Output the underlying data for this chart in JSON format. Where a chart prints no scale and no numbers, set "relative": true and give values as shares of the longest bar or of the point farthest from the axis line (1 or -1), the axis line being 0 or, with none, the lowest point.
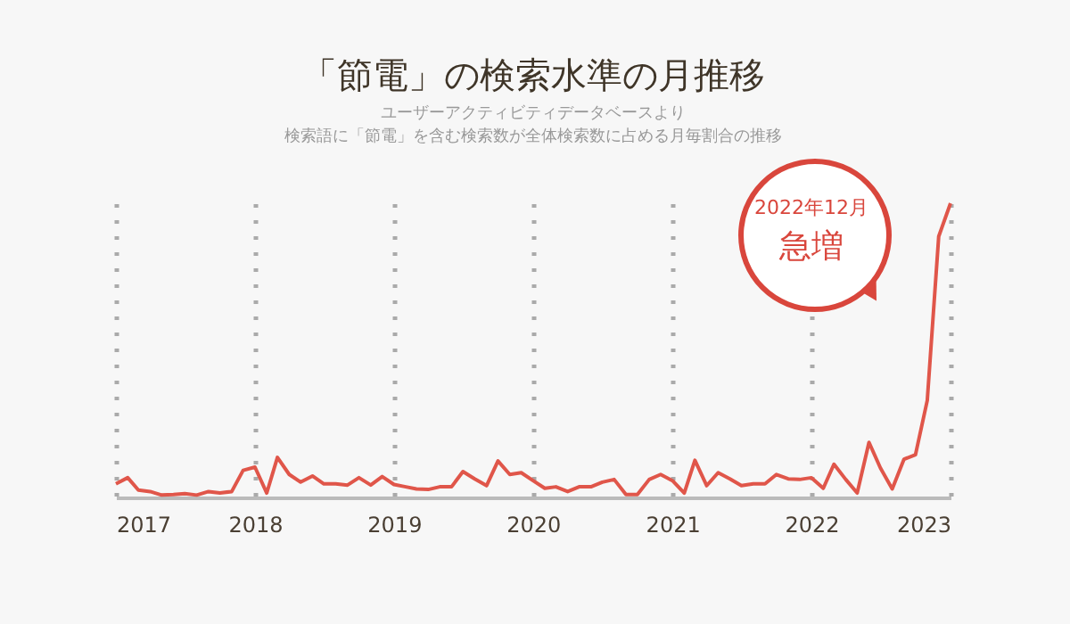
{
  "chart_data": {
    "type": "line",
    "title": "「節電」の検索水準の月推移",
    "subtitle": "ユーザーアクティビティデータベースより",
    "relative": true,
    "x": [
      "2017-01",
      "2017-02",
      "2017-03",
      "2017-04",
      "2017-05",
      "2017-06",
      "2017-07",
      "2017-08",
      "2017-09",
      "2017-10",
      "2017-11",
      "2017-12",
      "2018-01",
      "2018-02",
      "2018-03",
      "2018-04",
      "2018-05",
      "2018-06",
      "2018-07",
      "2018-08",
      "2018-09",
      "2018-10",
      "2018-11",
      "2018-12",
      "2019-01",
      "2019-02",
      "2019-03",
      "2019-04",
      "2019-05",
      "2019-06",
      "2019-07",
      "2019-08",
      "2019-09",
      "2019-10",
      "2019-11",
      "2019-12",
      "2020-01",
      "2020-02",
      "2020-03",
      "2020-04",
      "2020-05",
      "2020-06",
      "2020-07",
      "2020-08",
      "2020-09",
      "2020-10",
      "2020-11",
      "2020-12",
      "2021-01",
      "2021-02",
      "2021-03",
      "2021-04",
      "2021-05",
      "2021-06",
      "2021-07",
      "2021-08",
      "2021-09",
      "2021-10",
      "2021-11",
      "2021-12",
      "2022-01",
      "2022-02",
      "2022-03",
      "2022-04",
      "2022-05",
      "2022-06",
      "2022-07",
      "2022-08",
      "2022-09",
      "2022-10",
      "2022-11",
      "2022-12",
      "2023-01"
    ],
    "series": [
      {
        "color": "#e0564a",
        "values": [
          0.046,
          0.067,
          0.025,
          0.02,
          0.008,
          0.01,
          0.013,
          0.008,
          0.02,
          0.015,
          0.02,
          0.092,
          0.103,
          0.015,
          0.136,
          0.078,
          0.052,
          0.073,
          0.046,
          0.046,
          0.042,
          0.067,
          0.042,
          0.071,
          0.044,
          0.036,
          0.029,
          0.027,
          0.036,
          0.036,
          0.088,
          0.063,
          0.04,
          0.124,
          0.078,
          0.084,
          0.057,
          0.031,
          0.036,
          0.02,
          0.036,
          0.036,
          0.052,
          0.061,
          0.01,
          0.01,
          0.061,
          0.078,
          0.057,
          0.015,
          0.126,
          0.04,
          0.084,
          0.063,
          0.04,
          0.046,
          0.046,
          0.078,
          0.063,
          0.061,
          0.067,
          0.031,
          0.113,
          0.061,
          0.015,
          0.187,
          0.1,
          0.029,
          0.13,
          0.145,
          0.33,
          0.887,
          1
        ]
      }
    ],
    "xlim": [
      "2017-01-01",
      "2023-01-01"
    ],
    "xticks": [
      {
        "value": "2017-01-01",
        "label": "2017"
      },
      {
        "value": "2018-01-01",
        "label": "2018"
      },
      {
        "value": "2019-01-01",
        "label": "2019"
      },
      {
        "value": "2020-01-01",
        "label": "2020"
      },
      {
        "value": "2021-01-01",
        "label": "2021"
      },
      {
        "value": "2022-01-01",
        "label": "2022"
      },
      {
        "value": "2023-01-01",
        "label": "2023"
      }
    ],
    "grid": "x",
    "annotations": [
      "検索語に「節電」を含む検索数が全体検索数に占める月毎割合の推移",
      "2022年12月",
      "急増"
    ]
  }
}
